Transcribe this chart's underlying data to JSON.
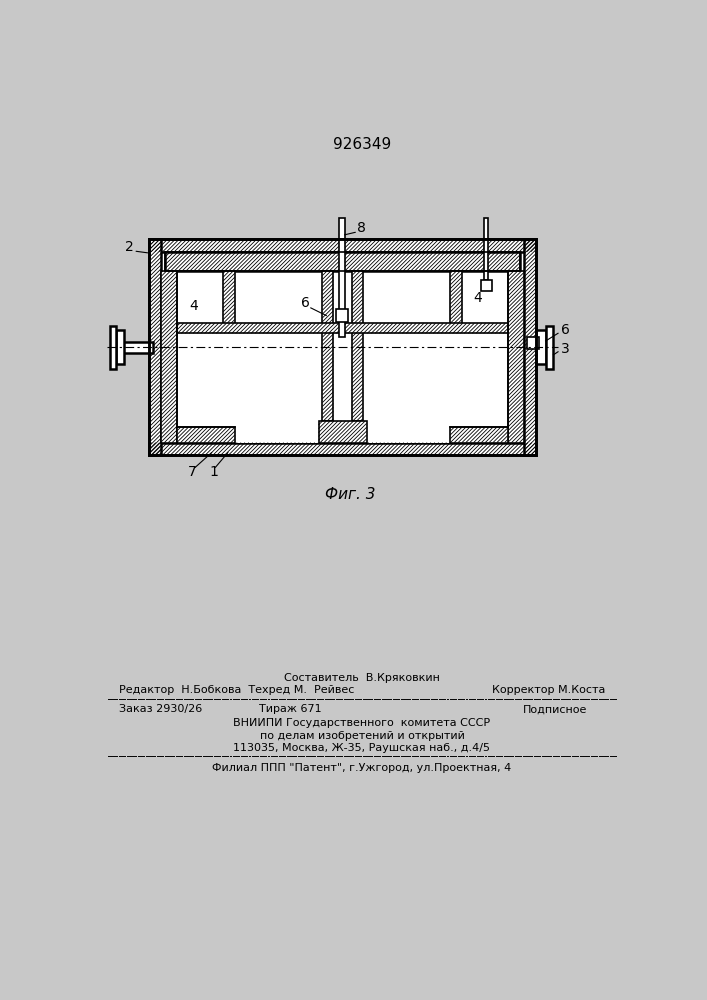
{
  "patent_number": "926349",
  "fig_label": "Фиг. 3",
  "bg_color": "#c8c8c8",
  "paper_color": "#e8e8e8",
  "footer": {
    "line1_center": "Составитель  В.Кряковкин",
    "line2_left": "Редактор  Н.Бобкова  Техред М.  Рейвес",
    "line2_right": "Корректор М.Коста",
    "line3_left": "Заказ 2930/26",
    "line3_mid": "Тираж 671",
    "line3_right": "Подписное",
    "line4": "ВНИИПИ Государственного  комитета СССР",
    "line5": "по делам изобретений и открытий",
    "line6": "113035, Москва, Ж-35, Раушская наб., д.4/5",
    "line7": "Филиал ППП \"Патент\", г.Ужгород, ул.Проектная, 4"
  }
}
